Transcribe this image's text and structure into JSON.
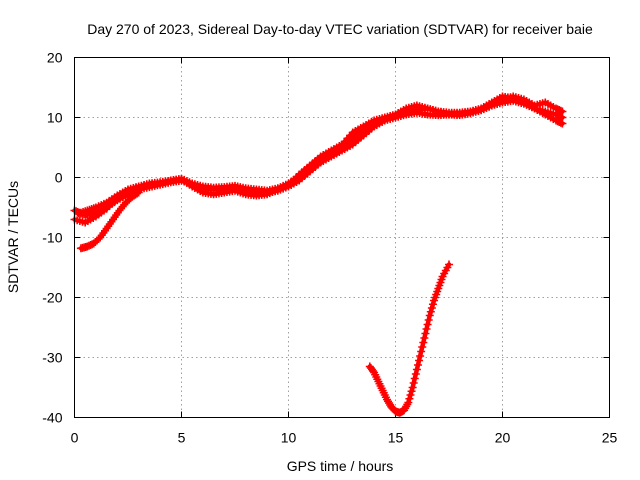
{
  "colors": {
    "series": "#ff0000",
    "grid": "#a0a0a0",
    "axis": "#000000",
    "background": "#ffffff"
  },
  "chart_data": {
    "type": "scatter",
    "title": "Day 270 of 2023, Sidereal Day-to-day VTEC variation (SDTVAR) for receiver baie",
    "xlabel": "GPS time / hours",
    "ylabel": "SDTVAR / TECUs",
    "xlim": [
      0,
      25
    ],
    "ylim": [
      -40,
      20
    ],
    "xticks": [
      0,
      5,
      10,
      15,
      20,
      25
    ],
    "yticks": [
      -40,
      -30,
      -20,
      -10,
      0,
      10,
      20
    ],
    "grid": true,
    "legend": "none",
    "marker": "cross",
    "series": [
      {
        "name": "track-main-a",
        "x": [
          0.0,
          0.3,
          0.6,
          1.0,
          1.5,
          2.0,
          2.5,
          3.0,
          3.5,
          4.0,
          4.5,
          5.0,
          5.5,
          6.0,
          6.5,
          7.0,
          7.5,
          8.0,
          8.5,
          9.0,
          9.5,
          10.0,
          10.5,
          11.0,
          11.5,
          12.0,
          12.5,
          13.0,
          13.5,
          14.0,
          14.5,
          15.0,
          15.5,
          16.0,
          16.5,
          17.0,
          17.5,
          18.0,
          18.5,
          19.0,
          19.5,
          20.0,
          20.5,
          21.0,
          21.5,
          22.0,
          22.5,
          22.8
        ],
        "y": [
          -5.5,
          -6.0,
          -6.2,
          -5.8,
          -5.0,
          -3.8,
          -2.8,
          -2.0,
          -1.6,
          -1.2,
          -0.8,
          -0.5,
          -1.2,
          -1.8,
          -2.0,
          -2.0,
          -1.8,
          -2.2,
          -2.5,
          -2.6,
          -2.2,
          -1.5,
          -0.5,
          1.0,
          2.5,
          3.5,
          4.5,
          5.5,
          7.0,
          8.5,
          9.5,
          10.0,
          10.5,
          10.8,
          10.5,
          10.4,
          10.5,
          10.6,
          10.9,
          11.3,
          12.0,
          12.5,
          12.8,
          12.3,
          11.5,
          10.5,
          9.5,
          9.0
        ]
      },
      {
        "name": "track-main-b",
        "x": [
          0.0,
          0.5,
          1.0,
          1.5,
          2.0,
          2.5,
          3.0,
          3.5,
          4.0,
          4.5,
          5.0,
          5.5,
          6.0,
          6.5,
          7.0,
          7.5,
          8.0,
          8.5,
          9.0,
          9.5,
          10.0,
          10.5,
          11.0,
          11.5,
          12.0,
          12.5,
          13.0,
          13.5,
          14.0,
          14.5,
          15.0,
          15.5,
          16.0,
          16.5,
          17.0,
          17.5,
          18.0,
          18.5,
          19.0,
          19.5,
          20.0,
          20.5,
          21.0,
          21.5,
          22.0,
          22.5,
          22.8
        ],
        "y": [
          -7.0,
          -7.5,
          -6.5,
          -5.2,
          -3.5,
          -2.2,
          -1.5,
          -1.0,
          -0.8,
          -0.5,
          -0.2,
          -1.0,
          -1.5,
          -1.7,
          -1.6,
          -1.4,
          -1.8,
          -2.0,
          -2.2,
          -1.8,
          -1.0,
          0.0,
          1.5,
          3.0,
          4.0,
          5.0,
          6.5,
          8.0,
          9.0,
          9.8,
          10.2,
          10.8,
          11.3,
          11.5,
          11.0,
          10.8,
          10.8,
          11.0,
          11.5,
          12.5,
          13.5,
          13.2,
          12.5,
          11.5,
          11.0,
          10.5,
          10.0
        ]
      },
      {
        "name": "track-main-c",
        "x": [
          0.2,
          0.6,
          1.0,
          1.5,
          2.0,
          2.5,
          3.0,
          3.5,
          4.0,
          4.5,
          5.0,
          5.5,
          6.0,
          6.5,
          7.0,
          7.5,
          8.0,
          8.5,
          9.0,
          9.5,
          10.0,
          10.5,
          11.0,
          11.5,
          12.0,
          12.5,
          13.0,
          13.5,
          14.0,
          14.5,
          15.0,
          15.5,
          16.0,
          16.5,
          17.0,
          17.5,
          18.0,
          18.5,
          19.0,
          19.5,
          20.0,
          20.5,
          21.0,
          21.5,
          22.0,
          22.5,
          22.8
        ],
        "y": [
          -6.0,
          -5.5,
          -5.0,
          -4.2,
          -3.0,
          -2.0,
          -1.5,
          -1.2,
          -1.0,
          -0.6,
          -0.3,
          -1.5,
          -2.5,
          -2.8,
          -2.5,
          -2.2,
          -2.8,
          -3.0,
          -2.8,
          -2.0,
          -1.2,
          0.5,
          2.0,
          3.5,
          4.5,
          5.5,
          7.5,
          8.5,
          9.5,
          10.0,
          10.5,
          11.5,
          12.0,
          11.5,
          11.0,
          10.5,
          10.4,
          10.7,
          11.2,
          12.0,
          13.0,
          13.5,
          13.0,
          12.0,
          12.5,
          11.5,
          11.0
        ]
      },
      {
        "name": "track-low-start",
        "x": [
          0.3,
          0.6,
          0.9,
          1.2,
          1.5,
          1.8,
          2.1,
          2.4,
          2.7,
          3.0
        ],
        "y": [
          -11.8,
          -11.5,
          -11.0,
          -10.0,
          -8.5,
          -7.0,
          -5.5,
          -4.2,
          -3.2,
          -2.5
        ]
      },
      {
        "name": "track-dip",
        "x": [
          13.8,
          14.0,
          14.2,
          14.4,
          14.6,
          14.8,
          15.0,
          15.2,
          15.4,
          15.6,
          15.8,
          16.0,
          16.2,
          16.4,
          16.6,
          16.8,
          17.0,
          17.2,
          17.5
        ],
        "y": [
          -31.5,
          -32.5,
          -34.0,
          -35.5,
          -37.0,
          -38.2,
          -39.0,
          -39.2,
          -38.8,
          -37.5,
          -35.0,
          -32.0,
          -29.0,
          -26.0,
          -23.0,
          -20.5,
          -18.5,
          -16.5,
          -14.5
        ]
      }
    ]
  }
}
